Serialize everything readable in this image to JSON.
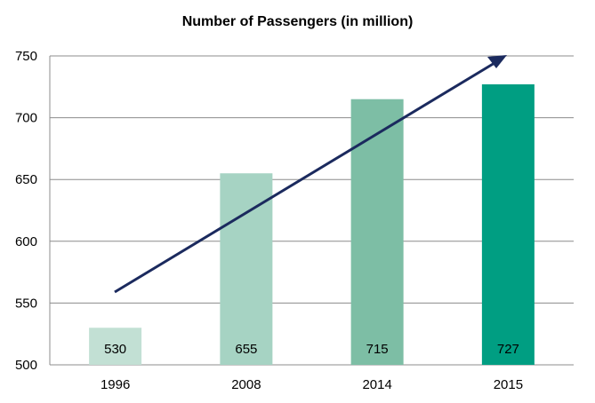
{
  "chart_data": {
    "type": "bar",
    "title": "Number of Passengers (in million)",
    "categories": [
      "1996",
      "2008",
      "2014",
      "2015"
    ],
    "values": [
      530,
      655,
      715,
      727
    ],
    "data_labels": [
      "530",
      "655",
      "715",
      "727"
    ],
    "colors": [
      "#c2e0d4",
      "#a6d3c3",
      "#7dbea5",
      "#009e82"
    ],
    "ylim": [
      500,
      750
    ],
    "yticks": [
      500,
      550,
      600,
      650,
      700,
      750
    ],
    "ytick_labels": [
      "500",
      "550",
      "600",
      "650",
      "700",
      "750"
    ],
    "grid": true,
    "xlabel": "",
    "ylabel": "",
    "annotation": {
      "type": "trend-arrow",
      "color": "#1b2a5e"
    }
  }
}
